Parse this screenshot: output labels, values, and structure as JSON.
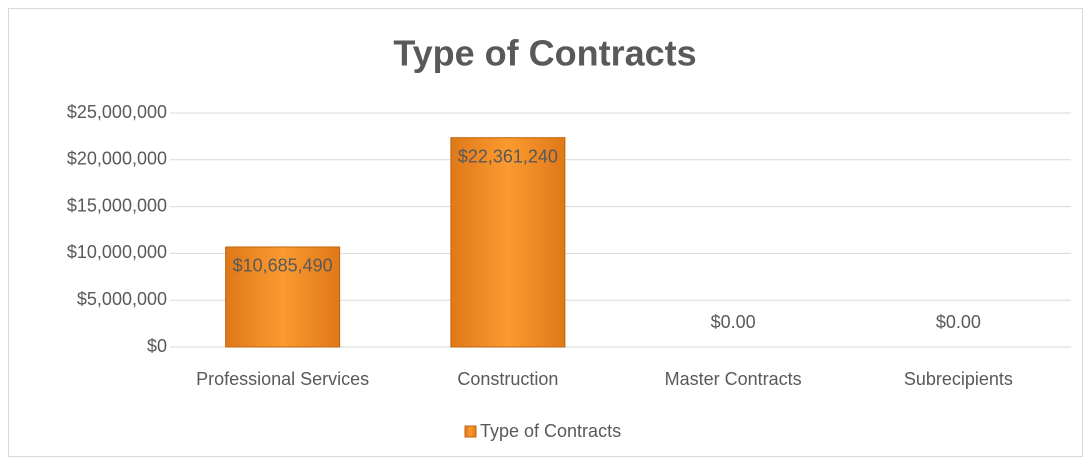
{
  "chart_data": {
    "type": "bar",
    "title": "Type of Contracts",
    "categories": [
      "Professional Services",
      "Construction",
      "Master Contracts",
      "Subrecipients"
    ],
    "series": [
      {
        "name": "Type of Contracts",
        "color": "#f7931e",
        "values": [
          10685490,
          22361240,
          0,
          0
        ],
        "value_labels": [
          "$10,685,490",
          "$22,361,240",
          "$0.00",
          "$0.00"
        ]
      }
    ],
    "ylim": [
      0,
      25000000
    ],
    "yticks": [
      {
        "value": 0,
        "label": "$0"
      },
      {
        "value": 5000000,
        "label": "$5,000,000"
      },
      {
        "value": 10000000,
        "label": "$10,000,000"
      },
      {
        "value": 15000000,
        "label": "$15,000,000"
      },
      {
        "value": 20000000,
        "label": "$20,000,000"
      },
      {
        "value": 25000000,
        "label": "$25,000,000"
      }
    ],
    "grid": true,
    "legend": "bottom"
  }
}
